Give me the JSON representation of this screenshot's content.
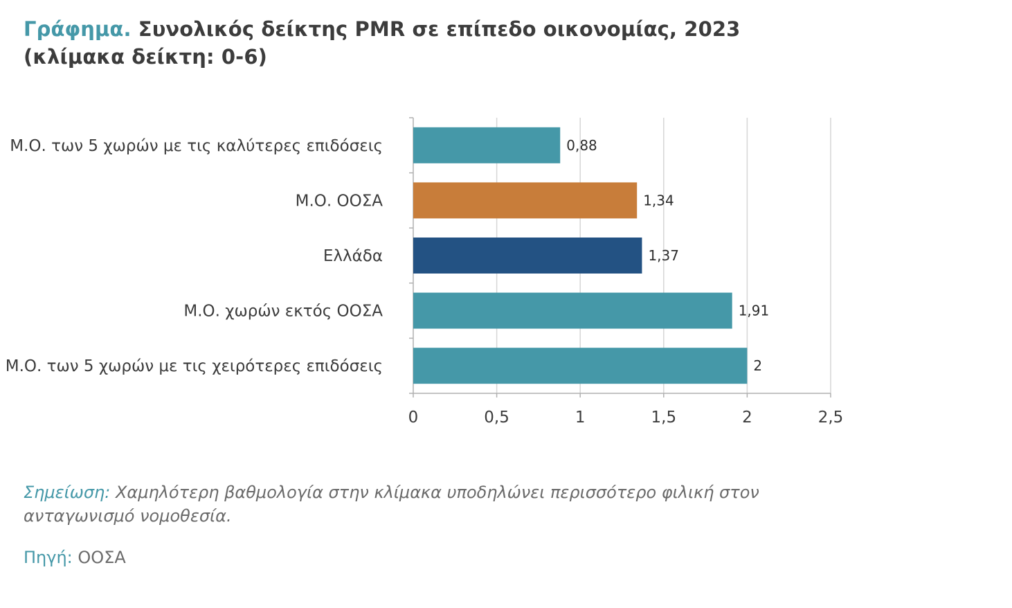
{
  "header": {
    "title_prefix": "Γράφημα.",
    "title_main": "Συνολικός δείκτης PMR σε επίπεδο οικονομίας, 2023",
    "title_line2": "(κλίμακα δείκτη: 0-6)"
  },
  "chart_data": {
    "type": "bar",
    "orientation": "horizontal",
    "categories": [
      "Μ.Ο. των 5 χωρών με τις καλύτερες επιδόσεις",
      "Μ.Ο. ΟΟΣΑ",
      "Ελλάδα",
      "Μ.Ο. χωρών εκτός ΟΟΣΑ",
      "Μ.Ο. των 5 χωρών με τις χειρότερες επιδόσεις"
    ],
    "values": [
      0.88,
      1.34,
      1.37,
      1.91,
      2
    ],
    "value_labels": [
      "0,88",
      "1,34",
      "1,37",
      "1,91",
      "2"
    ],
    "bar_colors": [
      "#4598a8",
      "#c87d3a",
      "#235283",
      "#4598a8",
      "#4598a8"
    ],
    "xlim": [
      0,
      2.5
    ],
    "xticks": [
      0,
      0.5,
      1,
      1.5,
      2,
      2.5
    ],
    "xtick_labels": [
      "0",
      "0,5",
      "1",
      "1,5",
      "2",
      "2,5"
    ],
    "grid": "vertical"
  },
  "footer": {
    "note_label": "Σημείωση:",
    "note_text": "Χαμηλότερη βαθμολογία στην κλίμακα υποδηλώνει περισσότερο φιλική στον ανταγωνισμό νομοθεσία.",
    "source_label": "Πηγή:",
    "source_text": "ΟΟΣΑ"
  }
}
